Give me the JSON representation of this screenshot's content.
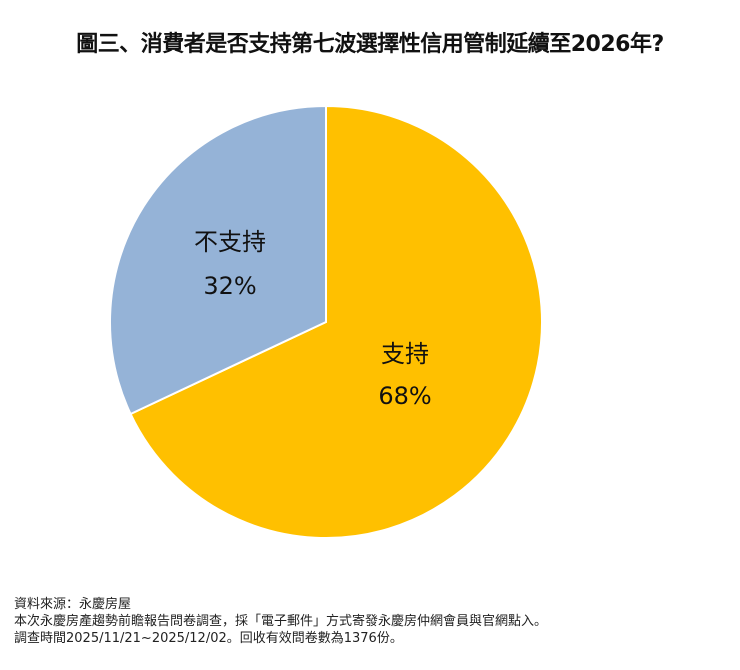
{
  "title": "圖三、消費者是否支持第七波選擇性信用管制延續至2026年?",
  "slices": [
    {
      "label": "支持",
      "pct_label": "68%",
      "value": 68,
      "color": "#FFC000"
    },
    {
      "label": "不支持",
      "pct_label": "32%",
      "value": 32,
      "color": "#95B3D7"
    }
  ],
  "notes": {
    "source": "資料來源：永慶房屋",
    "method": "本次永慶房產趨勢前瞻報告問卷調查，採「電子郵件」方式寄發永慶房仲網會員與官網點入。",
    "period": "調查時間2025/11/21~2025/12/02。回收有效問卷數為1376份。"
  },
  "chart_data": {
    "type": "pie",
    "title": "圖三、消費者是否支持第七波選擇性信用管制延續至2026年?",
    "categories": [
      "支持",
      "不支持"
    ],
    "values": [
      68,
      32
    ],
    "colors": [
      "#FFC000",
      "#95B3D7"
    ],
    "start_angle": "12 o'clock, clockwise",
    "legend": "none (data labels inside slices)"
  }
}
